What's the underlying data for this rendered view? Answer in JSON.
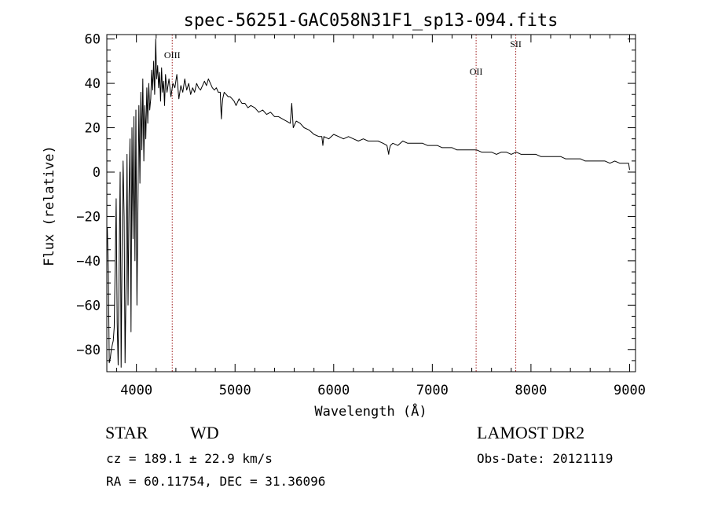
{
  "chart_data": {
    "type": "line",
    "title": "spec-56251-GAC058N31F1_sp13-094.fits",
    "xlabel": "Wavelength (Å)",
    "ylabel": "Flux (relative)",
    "xlim": [
      3700,
      9060
    ],
    "ylim": [
      -90,
      62
    ],
    "xticks": [
      4000,
      5000,
      6000,
      7000,
      8000,
      9000
    ],
    "yticks": [
      -80,
      -60,
      -40,
      -20,
      0,
      20,
      40,
      60
    ],
    "grid": false,
    "series": [
      {
        "x": [
          3705,
          3715,
          3725,
          3735,
          3745,
          3755,
          3765,
          3775,
          3785,
          3795,
          3805,
          3815,
          3825,
          3835,
          3845,
          3855,
          3865,
          3875,
          3885,
          3895,
          3905,
          3915,
          3925,
          3935,
          3945,
          3955,
          3965,
          3975,
          3985,
          3995,
          4005,
          4015,
          4025,
          4035,
          4045,
          4055,
          4065,
          4075,
          4085,
          4095,
          4105,
          4115,
          4125,
          4135,
          4145,
          4155,
          4165,
          4175,
          4185,
          4195,
          4205,
          4215,
          4225,
          4235,
          4245,
          4255,
          4265,
          4275,
          4285,
          4295,
          4310,
          4330,
          4350,
          4370,
          4390,
          4410,
          4430,
          4450,
          4470,
          4490,
          4510,
          4530,
          4550,
          4570,
          4590,
          4610,
          4630,
          4650,
          4670,
          4690,
          4710,
          4730,
          4750,
          4770,
          4790,
          4810,
          4830,
          4850,
          4855,
          4861,
          4867,
          4875,
          4890,
          4910,
          4930,
          4950,
          4970,
          4990,
          5010,
          5040,
          5070,
          5100,
          5130,
          5160,
          5200,
          5240,
          5280,
          5320,
          5360,
          5400,
          5440,
          5480,
          5520,
          5560,
          5575,
          5590,
          5620,
          5660,
          5700,
          5750,
          5800,
          5850,
          5880,
          5890,
          5900,
          5950,
          6000,
          6050,
          6100,
          6150,
          6200,
          6250,
          6300,
          6350,
          6400,
          6450,
          6500,
          6540,
          6558,
          6563,
          6575,
          6600,
          6650,
          6700,
          6750,
          6800,
          6850,
          6900,
          6950,
          7000,
          7050,
          7100,
          7150,
          7200,
          7250,
          7300,
          7350,
          7400,
          7450,
          7500,
          7550,
          7600,
          7650,
          7700,
          7750,
          7800,
          7850,
          7900,
          7950,
          8000,
          8050,
          8100,
          8150,
          8200,
          8250,
          8300,
          8350,
          8400,
          8450,
          8500,
          8550,
          8600,
          8650,
          8700,
          8750,
          8800,
          8850,
          8900,
          8950,
          8990,
          9000
        ],
        "y": [
          -25,
          -45,
          -86,
          -84,
          -80,
          -78,
          -76,
          -70,
          -40,
          -12,
          -68,
          -87,
          -40,
          0,
          -88,
          -30,
          5,
          -20,
          -86,
          -50,
          8,
          -60,
          -10,
          15,
          -72,
          20,
          -30,
          25,
          -40,
          28,
          -60,
          -15,
          30,
          -5,
          36,
          10,
          42,
          5,
          30,
          15,
          38,
          22,
          40,
          28,
          33,
          46,
          37,
          50,
          35,
          60,
          42,
          48,
          38,
          45,
          32,
          47,
          36,
          41,
          30,
          44,
          36,
          42,
          34,
          40,
          38,
          44,
          33,
          39,
          36,
          42,
          37,
          40,
          35,
          38,
          36,
          40,
          38,
          37,
          39,
          41,
          39,
          42,
          40,
          38,
          37,
          38,
          36,
          36,
          30,
          24,
          29,
          33,
          36,
          35,
          34,
          34,
          33,
          32,
          30,
          33,
          31,
          31,
          29,
          30,
          29,
          27,
          28,
          26,
          27,
          25,
          25,
          24,
          23,
          22,
          31,
          20,
          23,
          22,
          20,
          19,
          17,
          16,
          16,
          12,
          16,
          15,
          17,
          16,
          15,
          16,
          15,
          14,
          15,
          14,
          14,
          14,
          13,
          12,
          8,
          10,
          12,
          13,
          12,
          14,
          13,
          13,
          13,
          13,
          12,
          12,
          12,
          11,
          11,
          11,
          10,
          10,
          10,
          10,
          10,
          9,
          9,
          9,
          8,
          9,
          9,
          8,
          9,
          8,
          8,
          8,
          8,
          7,
          7,
          7,
          7,
          7,
          6,
          6,
          6,
          6,
          5,
          5,
          5,
          5,
          5,
          4,
          5,
          4,
          4,
          4,
          1
        ]
      }
    ],
    "annotations": [
      {
        "label": "OIII",
        "x": 4363
      },
      {
        "label": "OII",
        "x": 7444
      },
      {
        "label": "SII",
        "x": 7846
      }
    ]
  },
  "info": {
    "class_label": "STAR",
    "subclass_label": "WD",
    "survey": "LAMOST DR2",
    "cz": "cz = 189.1 ± 22.9 km/s",
    "obs_date": "Obs-Date: 20121119",
    "coords": "RA =  60.11754, DEC =  31.36096"
  },
  "colors": {
    "line": "#000000",
    "marker_line": "#a02020",
    "background": "#ffffff"
  }
}
